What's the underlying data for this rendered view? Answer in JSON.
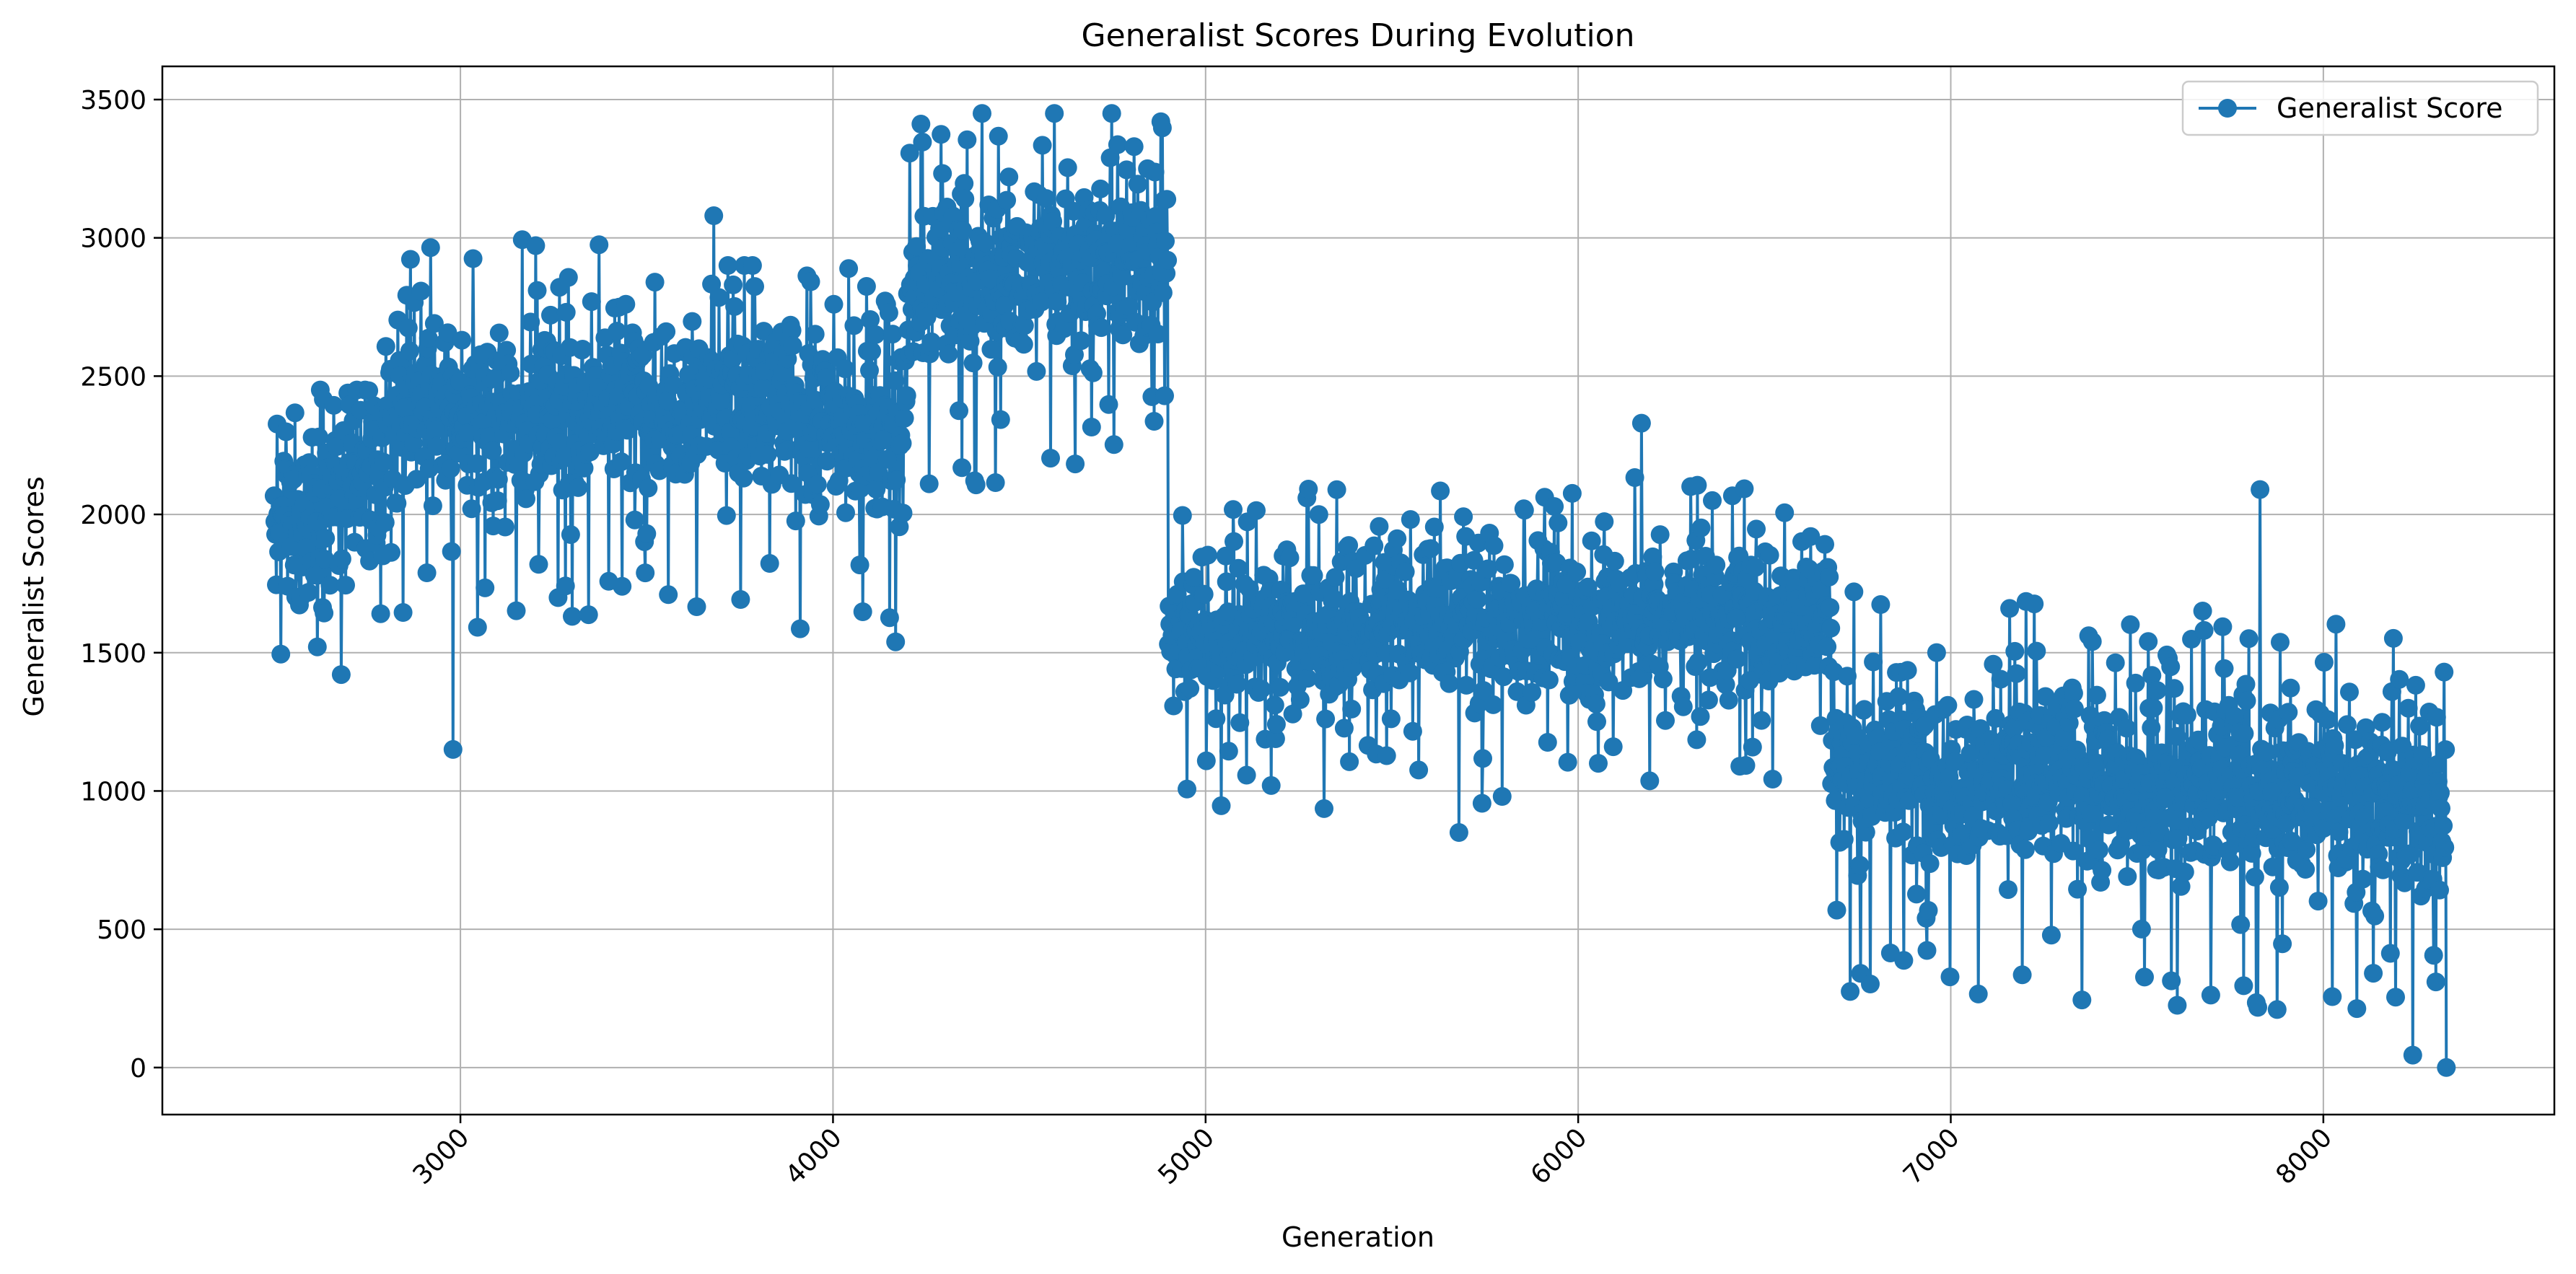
{
  "chart_data": {
    "type": "line",
    "title": "Generalist Scores During Evolution",
    "xlabel": "Generation",
    "ylabel": "Generalist Scores",
    "xlim": [
      2200,
      8620
    ],
    "ylim": [
      -170,
      3620
    ],
    "x_ticks": [
      3000,
      4000,
      5000,
      6000,
      7000,
      8000
    ],
    "y_ticks": [
      0,
      500,
      1000,
      1500,
      2000,
      2500,
      3000,
      3500
    ],
    "x_tick_rotation": 45,
    "grid": true,
    "legend": {
      "placement": "top-right",
      "entries": [
        "Generalist Score"
      ]
    },
    "marker": "circle",
    "color": "#1f77b4",
    "x_start": 2500,
    "x_end": 8330,
    "x_step": 2,
    "segments": [
      {
        "x": [
          2500,
          2800
        ],
        "mean": [
          1950,
          2150
        ],
        "spread": 360,
        "min": 1150,
        "max": 2450
      },
      {
        "x": [
          2800,
          3700
        ],
        "mean": [
          2330,
          2450
        ],
        "spread": 330,
        "min": 1150,
        "max": 3080
      },
      {
        "x": [
          3700,
          4200
        ],
        "mean": [
          2400,
          2300
        ],
        "spread": 330,
        "min": 1500,
        "max": 2900
      },
      {
        "x": [
          4200,
          4900
        ],
        "mean": [
          2800,
          2950
        ],
        "spread": 320,
        "min": 1650,
        "max": 3450
      },
      {
        "x": [
          4900,
          6680
        ],
        "mean": [
          1560,
          1650
        ],
        "spread": 270,
        "min": 850,
        "max": 2330
      },
      {
        "x": [
          6680,
          8330
        ],
        "mean": [
          1100,
          950
        ],
        "spread": 340,
        "min": 0,
        "max": 2090
      }
    ],
    "notable_points": [
      {
        "x": 2980,
        "y": 1150
      },
      {
        "x": 3680,
        "y": 3080
      },
      {
        "x": 4400,
        "y": 3450
      },
      {
        "x": 4880,
        "y": 3420
      },
      {
        "x": 5680,
        "y": 850
      },
      {
        "x": 6170,
        "y": 2330
      },
      {
        "x": 6730,
        "y": 275
      },
      {
        "x": 7830,
        "y": 2090
      },
      {
        "x": 8240,
        "y": 45
      },
      {
        "x": 8330,
        "y": 0
      }
    ]
  }
}
